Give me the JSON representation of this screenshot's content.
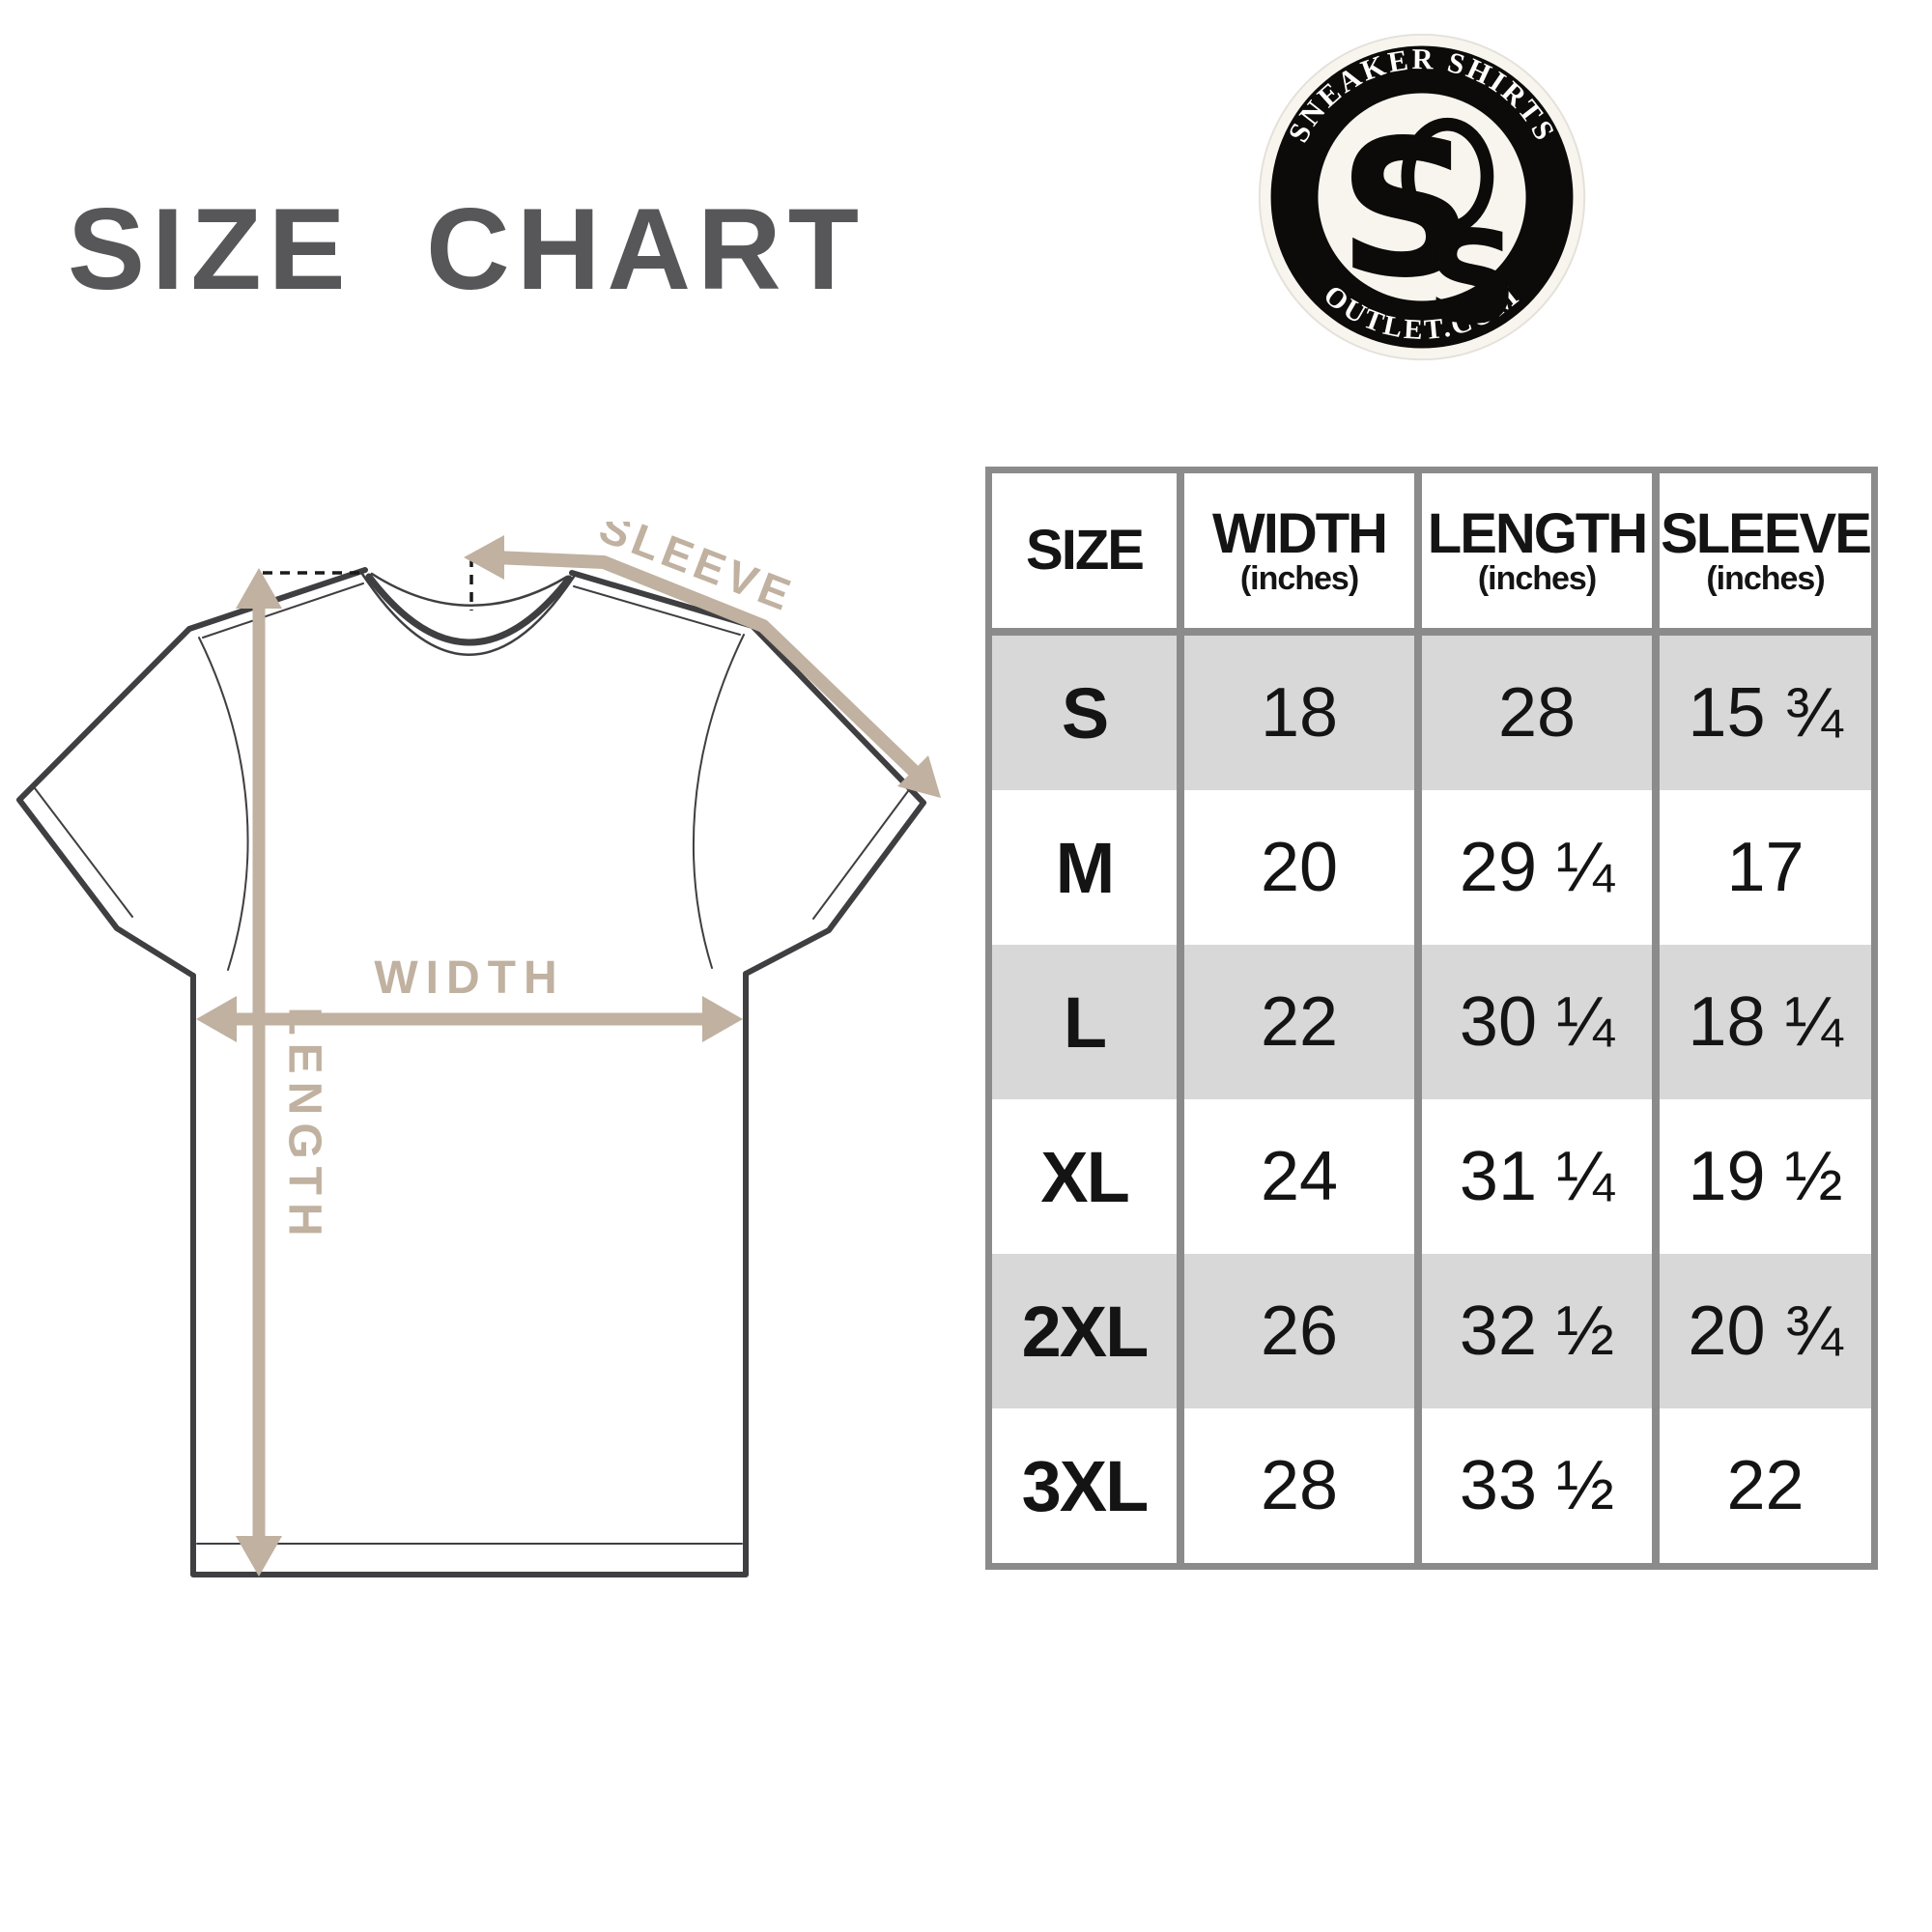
{
  "title": "SIZE CHART",
  "logo": {
    "top_text": "SNEAKER SHIRTS",
    "bottom_text": "OUTLET.COM",
    "monogram_letter": "S"
  },
  "diagram": {
    "labels": {
      "sleeve": "SLEEVE",
      "width": "WIDTH",
      "length": "LENGTH"
    }
  },
  "table": {
    "columns": [
      {
        "label": "SIZE",
        "sub": ""
      },
      {
        "label": "WIDTH",
        "sub": "(inches)"
      },
      {
        "label": "LENGTH",
        "sub": "(inches)"
      },
      {
        "label": "SLEEVE",
        "sub": "(inches)"
      }
    ],
    "rows": [
      {
        "size": "S",
        "width": "18",
        "length": "28",
        "sleeve": "15 ¾"
      },
      {
        "size": "M",
        "width": "20",
        "length": "29 ¼",
        "sleeve": "17"
      },
      {
        "size": "L",
        "width": "22",
        "length": "30 ¼",
        "sleeve": "18 ¼"
      },
      {
        "size": "XL",
        "width": "24",
        "length": "31 ¼",
        "sleeve": "19 ½"
      },
      {
        "size": "2XL",
        "width": "26",
        "length": "32 ½",
        "sleeve": "20 ¾"
      },
      {
        "size": "3XL",
        "width": "28",
        "length": "33 ½",
        "sleeve": "22"
      }
    ]
  },
  "colors": {
    "title_gray": "#57575a",
    "accent_tan": "#c0b1a0",
    "shirt_outline": "#3f3e41",
    "table_border_gray": "#8b8b8b",
    "row_gray": "#d8d8d8",
    "text_black": "#141414",
    "logo_black": "#0c0b09",
    "logo_cream": "#f8f5ee"
  }
}
